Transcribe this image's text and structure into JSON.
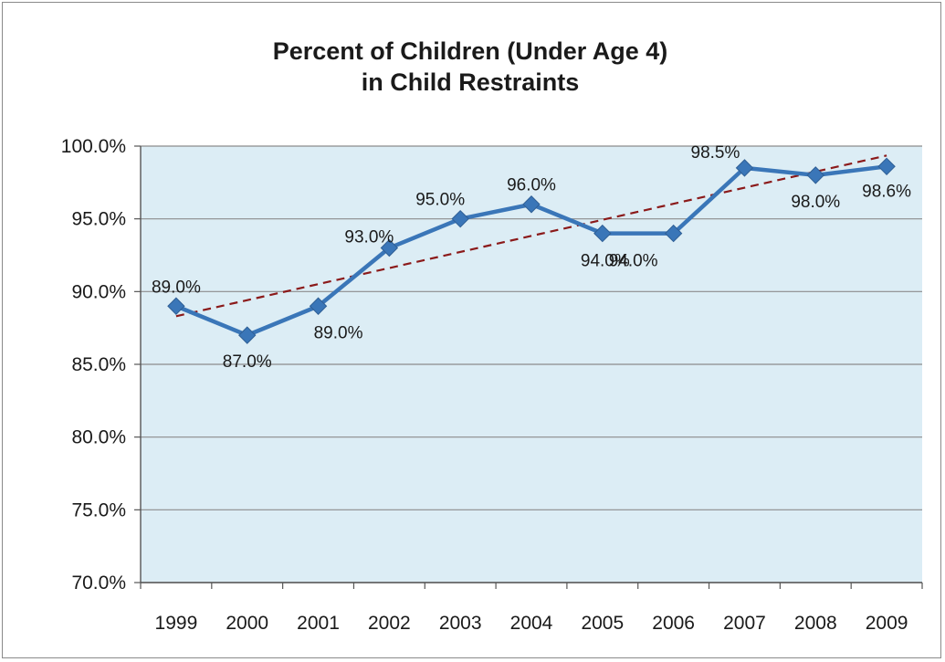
{
  "chart_data": {
    "type": "line",
    "title": "Percent of Children (Under Age 4)",
    "subtitle": "in Child Restraints",
    "xlabel": "",
    "ylabel": "",
    "categories": [
      "1999",
      "2000",
      "2001",
      "2002",
      "2003",
      "2004",
      "2005",
      "2006",
      "2007",
      "2008",
      "2009"
    ],
    "series": [
      {
        "values": [
          89.0,
          87.0,
          89.0,
          93.0,
          95.0,
          96.0,
          94.0,
          94.0,
          98.5,
          98.0,
          98.6
        ],
        "data_labels": [
          "89.0%",
          "87.0%",
          "89.0%",
          "93.0%",
          "95.0%",
          "96.0%",
          "94.0%",
          "94.0%",
          "98.5%",
          "98.0%",
          "98.6%"
        ],
        "color": "#3a76b8",
        "marker": "diamond"
      }
    ],
    "trendline": {
      "type": "linear",
      "color": "#8b1a1a",
      "style": "dashed"
    },
    "ylim": [
      70,
      100
    ],
    "yticks": [
      "70.0%",
      "75.0%",
      "80.0%",
      "85.0%",
      "90.0%",
      "95.0%",
      "100.0%"
    ],
    "grid": true,
    "legend": "none",
    "plot_background": "#dcedf5"
  }
}
